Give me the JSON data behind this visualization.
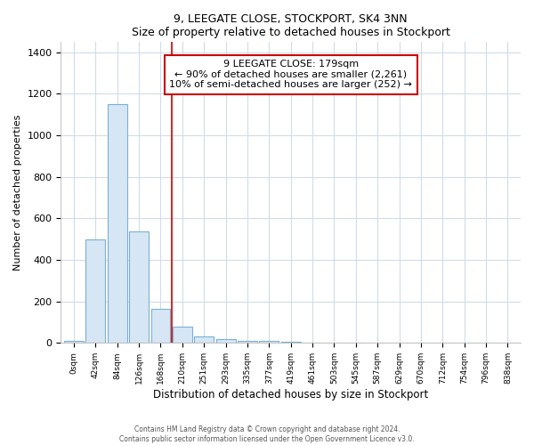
{
  "title1": "9, LEEGATE CLOSE, STOCKPORT, SK4 3NN",
  "title2": "Size of property relative to detached houses in Stockport",
  "xlabel": "Distribution of detached houses by size in Stockport",
  "ylabel": "Number of detached properties",
  "bar_labels": [
    "0sqm",
    "42sqm",
    "84sqm",
    "126sqm",
    "168sqm",
    "210sqm",
    "251sqm",
    "293sqm",
    "335sqm",
    "377sqm",
    "419sqm",
    "461sqm",
    "503sqm",
    "545sqm",
    "587sqm",
    "629sqm",
    "670sqm",
    "712sqm",
    "754sqm",
    "796sqm",
    "838sqm"
  ],
  "bar_values": [
    10,
    500,
    1150,
    535,
    165,
    80,
    33,
    20,
    10,
    8,
    5,
    3,
    2,
    1,
    1,
    1,
    0,
    0,
    0,
    0,
    0
  ],
  "bar_color": "#d6e6f5",
  "bar_edge_color": "#7ab0d4",
  "ylim": [
    0,
    1450
  ],
  "vline_x": 4.5,
  "vline_color": "#cc0000",
  "annotation_text": "9 LEEGATE CLOSE: 179sqm\n← 90% of detached houses are smaller (2,261)\n10% of semi-detached houses are larger (252) →",
  "annotation_box_color": "#cc0000",
  "footnote1": "Contains HM Land Registry data © Crown copyright and database right 2024.",
  "footnote2": "Contains public sector information licensed under the Open Government Licence v3.0.",
  "background_color": "#ffffff",
  "grid_color": "#d0dce8"
}
